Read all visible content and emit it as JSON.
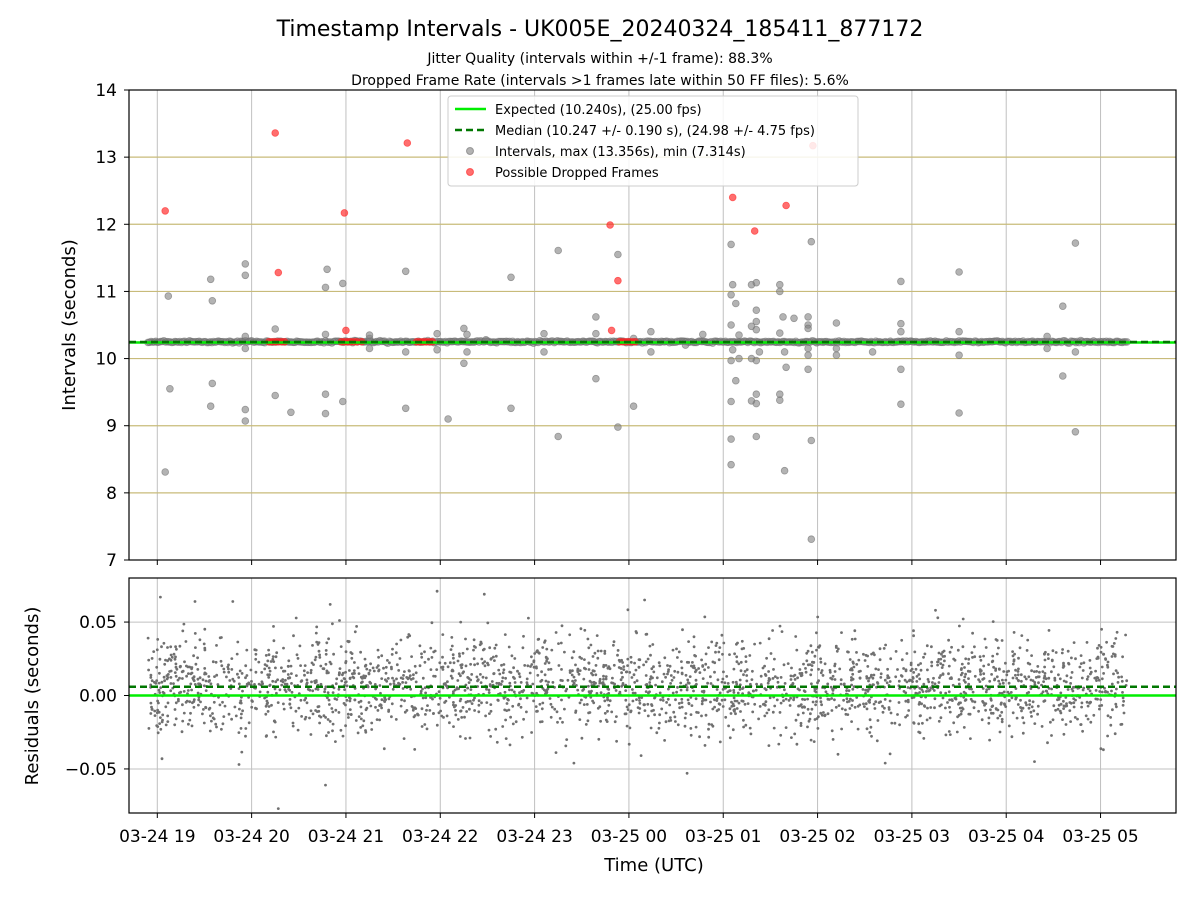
{
  "chart_data": [
    {
      "type": "scatter",
      "title": "Timestamp Intervals - UK005E_20240324_185411_877172",
      "subtitle_lines": [
        "Jitter Quality (intervals within +/-1 frame): 88.3%",
        "Dropped Frame Rate (intervals >1 frames late within 50 FF files): 5.6%"
      ],
      "ylabel": "Intervals (seconds)",
      "xlabel": "",
      "xlim": [
        "2024-03-24 18:42",
        "2024-03-25 05:48"
      ],
      "ylim": [
        7,
        14
      ],
      "yticks": [
        "7",
        "8",
        "9",
        "10",
        "11",
        "12",
        "13",
        "14"
      ],
      "grid": true,
      "legend_position": "top-center",
      "legend": [
        "Expected (10.240s), (25.00 fps)",
        "Median (10.247 +/- 0.190 s), (24.98 +/- 4.75 fps)",
        "Intervals, max (13.356s), min (7.314s)",
        "Possible Dropped Frames"
      ],
      "expected_interval": 10.24,
      "median_interval": 10.247,
      "dense_band": {
        "value": 10.25,
        "x_range": [
          "2024-03-24 18:54",
          "2024-03-25 05:17"
        ]
      },
      "intervals_outliers": [
        [
          "2024-03-24 19:05",
          8.31
        ],
        [
          "2024-03-24 19:07",
          10.93
        ],
        [
          "2024-03-24 19:08",
          9.55
        ],
        [
          "2024-03-24 19:34",
          11.18
        ],
        [
          "2024-03-24 19:34",
          9.29
        ],
        [
          "2024-03-24 19:35",
          10.86
        ],
        [
          "2024-03-24 19:35",
          9.63
        ],
        [
          "2024-03-24 19:56",
          11.41
        ],
        [
          "2024-03-24 19:56",
          11.24
        ],
        [
          "2024-03-24 19:56",
          9.24
        ],
        [
          "2024-03-24 19:56",
          9.07
        ],
        [
          "2024-03-24 19:56",
          10.33
        ],
        [
          "2024-03-24 19:56",
          10.15
        ],
        [
          "2024-03-24 20:15",
          10.44
        ],
        [
          "2024-03-24 20:15",
          9.45
        ],
        [
          "2024-03-24 20:25",
          9.2
        ],
        [
          "2024-03-24 20:48",
          11.33
        ],
        [
          "2024-03-24 20:47",
          11.06
        ],
        [
          "2024-03-24 20:47",
          9.47
        ],
        [
          "2024-03-24 20:47",
          9.18
        ],
        [
          "2024-03-24 20:47",
          10.36
        ],
        [
          "2024-03-24 20:58",
          11.12
        ],
        [
          "2024-03-24 20:58",
          9.36
        ],
        [
          "2024-03-24 21:15",
          10.15
        ],
        [
          "2024-03-24 21:15",
          10.3
        ],
        [
          "2024-03-24 21:15",
          10.35
        ],
        [
          "2024-03-24 21:38",
          11.3
        ],
        [
          "2024-03-24 21:38",
          9.26
        ],
        [
          "2024-03-24 21:38",
          10.1
        ],
        [
          "2024-03-24 21:58",
          10.37
        ],
        [
          "2024-03-24 21:58",
          10.13
        ],
        [
          "2024-03-24 22:05",
          9.1
        ],
        [
          "2024-03-24 22:15",
          10.45
        ],
        [
          "2024-03-24 22:15",
          9.93
        ],
        [
          "2024-03-24 22:17",
          10.1
        ],
        [
          "2024-03-24 22:17",
          10.36
        ],
        [
          "2024-03-24 22:29",
          10.28
        ],
        [
          "2024-03-24 22:45",
          11.21
        ],
        [
          "2024-03-24 22:45",
          9.26
        ],
        [
          "2024-03-24 23:06",
          10.1
        ],
        [
          "2024-03-24 23:06",
          10.37
        ],
        [
          "2024-03-24 23:15",
          11.61
        ],
        [
          "2024-03-24 23:15",
          8.84
        ],
        [
          "2024-03-24 23:39",
          10.62
        ],
        [
          "2024-03-24 23:39",
          9.7
        ],
        [
          "2024-03-24 23:39",
          10.37
        ],
        [
          "2024-03-24 23:53",
          11.55
        ],
        [
          "2024-03-24 23:53",
          8.98
        ],
        [
          "2024-03-25 00:03",
          9.29
        ],
        [
          "2024-03-25 00:03",
          10.3
        ],
        [
          "2024-03-25 00:14",
          10.4
        ],
        [
          "2024-03-25 00:14",
          10.1
        ],
        [
          "2024-03-25 00:36",
          10.2
        ],
        [
          "2024-03-25 00:47",
          10.36
        ],
        [
          "2024-03-25 01:05",
          11.7
        ],
        [
          "2024-03-25 01:05",
          10.95
        ],
        [
          "2024-03-25 01:05",
          10.5
        ],
        [
          "2024-03-25 01:05",
          9.97
        ],
        [
          "2024-03-25 01:05",
          9.36
        ],
        [
          "2024-03-25 01:05",
          8.8
        ],
        [
          "2024-03-25 01:05",
          8.42
        ],
        [
          "2024-03-25 01:06",
          11.1
        ],
        [
          "2024-03-25 01:06",
          10.13
        ],
        [
          "2024-03-25 01:08",
          10.82
        ],
        [
          "2024-03-25 01:08",
          9.67
        ],
        [
          "2024-03-25 01:10",
          10.35
        ],
        [
          "2024-03-25 01:10",
          10.0
        ],
        [
          "2024-03-25 01:18",
          11.1
        ],
        [
          "2024-03-25 01:18",
          10.48
        ],
        [
          "2024-03-25 01:18",
          10.0
        ],
        [
          "2024-03-25 01:18",
          9.37
        ],
        [
          "2024-03-25 01:21",
          11.13
        ],
        [
          "2024-03-25 01:21",
          10.72
        ],
        [
          "2024-03-25 01:21",
          10.55
        ],
        [
          "2024-03-25 01:21",
          10.43
        ],
        [
          "2024-03-25 01:21",
          9.97
        ],
        [
          "2024-03-25 01:21",
          9.47
        ],
        [
          "2024-03-25 01:21",
          9.33
        ],
        [
          "2024-03-25 01:21",
          8.84
        ],
        [
          "2024-03-25 01:23",
          10.1
        ],
        [
          "2024-03-25 01:36",
          11.1
        ],
        [
          "2024-03-25 01:36",
          11.0
        ],
        [
          "2024-03-25 01:36",
          9.47
        ],
        [
          "2024-03-25 01:36",
          9.38
        ],
        [
          "2024-03-25 01:36",
          10.38
        ],
        [
          "2024-03-25 01:38",
          10.62
        ],
        [
          "2024-03-25 01:39",
          8.33
        ],
        [
          "2024-03-25 01:39",
          10.1
        ],
        [
          "2024-03-25 01:40",
          9.87
        ],
        [
          "2024-03-25 01:45",
          10.6
        ],
        [
          "2024-03-25 01:54",
          10.5
        ],
        [
          "2024-03-25 01:54",
          10.45
        ],
        [
          "2024-03-25 01:54",
          10.15
        ],
        [
          "2024-03-25 01:54",
          10.05
        ],
        [
          "2024-03-25 01:54",
          9.84
        ],
        [
          "2024-03-25 01:54",
          10.62
        ],
        [
          "2024-03-25 01:56",
          11.74
        ],
        [
          "2024-03-25 01:56",
          8.78
        ],
        [
          "2024-03-25 01:56",
          7.31
        ],
        [
          "2024-03-25 02:12",
          10.53
        ],
        [
          "2024-03-25 02:12",
          10.05
        ],
        [
          "2024-03-25 02:12",
          10.15
        ],
        [
          "2024-03-25 02:35",
          10.1
        ],
        [
          "2024-03-25 02:53",
          11.15
        ],
        [
          "2024-03-25 02:53",
          10.52
        ],
        [
          "2024-03-25 02:53",
          10.4
        ],
        [
          "2024-03-25 02:53",
          9.84
        ],
        [
          "2024-03-25 02:53",
          9.32
        ],
        [
          "2024-03-25 03:30",
          11.29
        ],
        [
          "2024-03-25 03:30",
          10.4
        ],
        [
          "2024-03-25 03:30",
          10.05
        ],
        [
          "2024-03-25 03:30",
          9.19
        ],
        [
          "2024-03-25 04:26",
          10.33
        ],
        [
          "2024-03-25 04:26",
          10.15
        ],
        [
          "2024-03-25 04:36",
          10.78
        ],
        [
          "2024-03-25 04:36",
          9.74
        ],
        [
          "2024-03-25 04:44",
          11.72
        ],
        [
          "2024-03-25 04:44",
          10.1
        ],
        [
          "2024-03-25 04:44",
          8.91
        ]
      ],
      "dropped_frames": [
        [
          "2024-03-24 19:05",
          12.2
        ],
        [
          "2024-03-24 20:15",
          13.36
        ],
        [
          "2024-03-24 20:17",
          11.28
        ],
        [
          "2024-03-24 20:59",
          12.17
        ],
        [
          "2024-03-24 21:00",
          10.42
        ],
        [
          "2024-03-24 21:39",
          13.21
        ],
        [
          "2024-03-24 23:48",
          11.99
        ],
        [
          "2024-03-24 23:49",
          10.42
        ],
        [
          "2024-03-24 23:53",
          11.16
        ],
        [
          "2024-03-25 01:06",
          12.4
        ],
        [
          "2024-03-25 01:20",
          11.9
        ],
        [
          "2024-03-25 01:40",
          12.28
        ],
        [
          "2024-03-25 01:57",
          13.17
        ],
        [
          "2024-03-24 20:11",
          10.25
        ],
        [
          "2024-03-24 20:13",
          10.25
        ],
        [
          "2024-03-24 20:15",
          10.25
        ],
        [
          "2024-03-24 20:17",
          10.25
        ],
        [
          "2024-03-24 20:19",
          10.25
        ],
        [
          "2024-03-24 20:21",
          10.25
        ],
        [
          "2024-03-24 20:57",
          10.25
        ],
        [
          "2024-03-24 20:59",
          10.25
        ],
        [
          "2024-03-24 21:01",
          10.25
        ],
        [
          "2024-03-24 21:03",
          10.25
        ],
        [
          "2024-03-24 21:05",
          10.25
        ],
        [
          "2024-03-24 21:07",
          10.25
        ],
        [
          "2024-03-24 21:10",
          10.25
        ],
        [
          "2024-03-24 21:45",
          10.25
        ],
        [
          "2024-03-24 21:47",
          10.25
        ],
        [
          "2024-03-24 21:49",
          10.25
        ],
        [
          "2024-03-24 21:51",
          10.25
        ],
        [
          "2024-03-24 21:53",
          10.25
        ],
        [
          "2024-03-24 21:55",
          10.25
        ],
        [
          "2024-03-24 23:54",
          10.25
        ],
        [
          "2024-03-24 23:56",
          10.25
        ],
        [
          "2024-03-24 23:58",
          10.25
        ],
        [
          "2024-03-25 00:00",
          10.25
        ],
        [
          "2024-03-25 00:02",
          10.25
        ],
        [
          "2024-03-25 00:04",
          10.25
        ]
      ],
      "colors": {
        "expected": "#00ee00",
        "median": "#007700",
        "intervals": "#808080",
        "dropped": "#ff2020",
        "grid_y": "#c8bb7a",
        "grid_x": "#c0c0c0",
        "band": "#555555"
      }
    },
    {
      "type": "scatter",
      "title": "",
      "xlabel": "Time (UTC)",
      "ylabel": "Residuals (seconds)",
      "ylim": [
        -0.08,
        0.08
      ],
      "yticks": [
        "−0.05",
        "0.00",
        "0.05"
      ],
      "ytick_values": [
        -0.05,
        0,
        0.05
      ],
      "xticks": [
        "03-24 19",
        "03-24 20",
        "03-24 21",
        "03-24 22",
        "03-24 23",
        "03-25 00",
        "03-25 01",
        "03-25 02",
        "03-25 03",
        "03-25 04",
        "03-25 05"
      ],
      "xtick_values": [
        "2024-03-24 19:00",
        "2024-03-24 20:00",
        "2024-03-24 21:00",
        "2024-03-24 22:00",
        "2024-03-24 23:00",
        "2024-03-25 00:00",
        "2024-03-25 01:00",
        "2024-03-25 02:00",
        "2024-03-25 03:00",
        "2024-03-25 04:00",
        "2024-03-25 05:00"
      ],
      "expected_residual": 0.0,
      "median_residual": 0.006,
      "residual_spread": {
        "x_range": [
          "2024-03-24 18:54",
          "2024-03-25 05:17"
        ],
        "typical_range": [
          -0.035,
          0.05
        ],
        "n_points": 2600
      },
      "residual_outliers": [
        [
          "2024-03-24 19:02",
          0.067
        ],
        [
          "2024-03-24 19:03",
          -0.043
        ],
        [
          "2024-03-24 19:24",
          0.064
        ],
        [
          "2024-03-24 19:48",
          0.064
        ],
        [
          "2024-03-24 19:52",
          -0.047
        ],
        [
          "2024-03-24 20:17",
          -0.077
        ],
        [
          "2024-03-24 20:47",
          -0.061
        ],
        [
          "2024-03-24 20:50",
          0.062
        ],
        [
          "2024-03-24 21:58",
          0.071
        ],
        [
          "2024-03-24 22:28",
          0.069
        ],
        [
          "2024-03-24 23:25",
          -0.046
        ],
        [
          "2024-03-25 00:10",
          0.065
        ],
        [
          "2024-03-25 00:37",
          -0.053
        ],
        [
          "2024-03-25 02:13",
          -0.04
        ],
        [
          "2024-03-25 02:43",
          -0.046
        ],
        [
          "2024-03-25 03:15",
          0.058
        ],
        [
          "2024-03-25 04:18",
          -0.045
        ]
      ],
      "colors": {
        "points": "#707070"
      }
    }
  ]
}
